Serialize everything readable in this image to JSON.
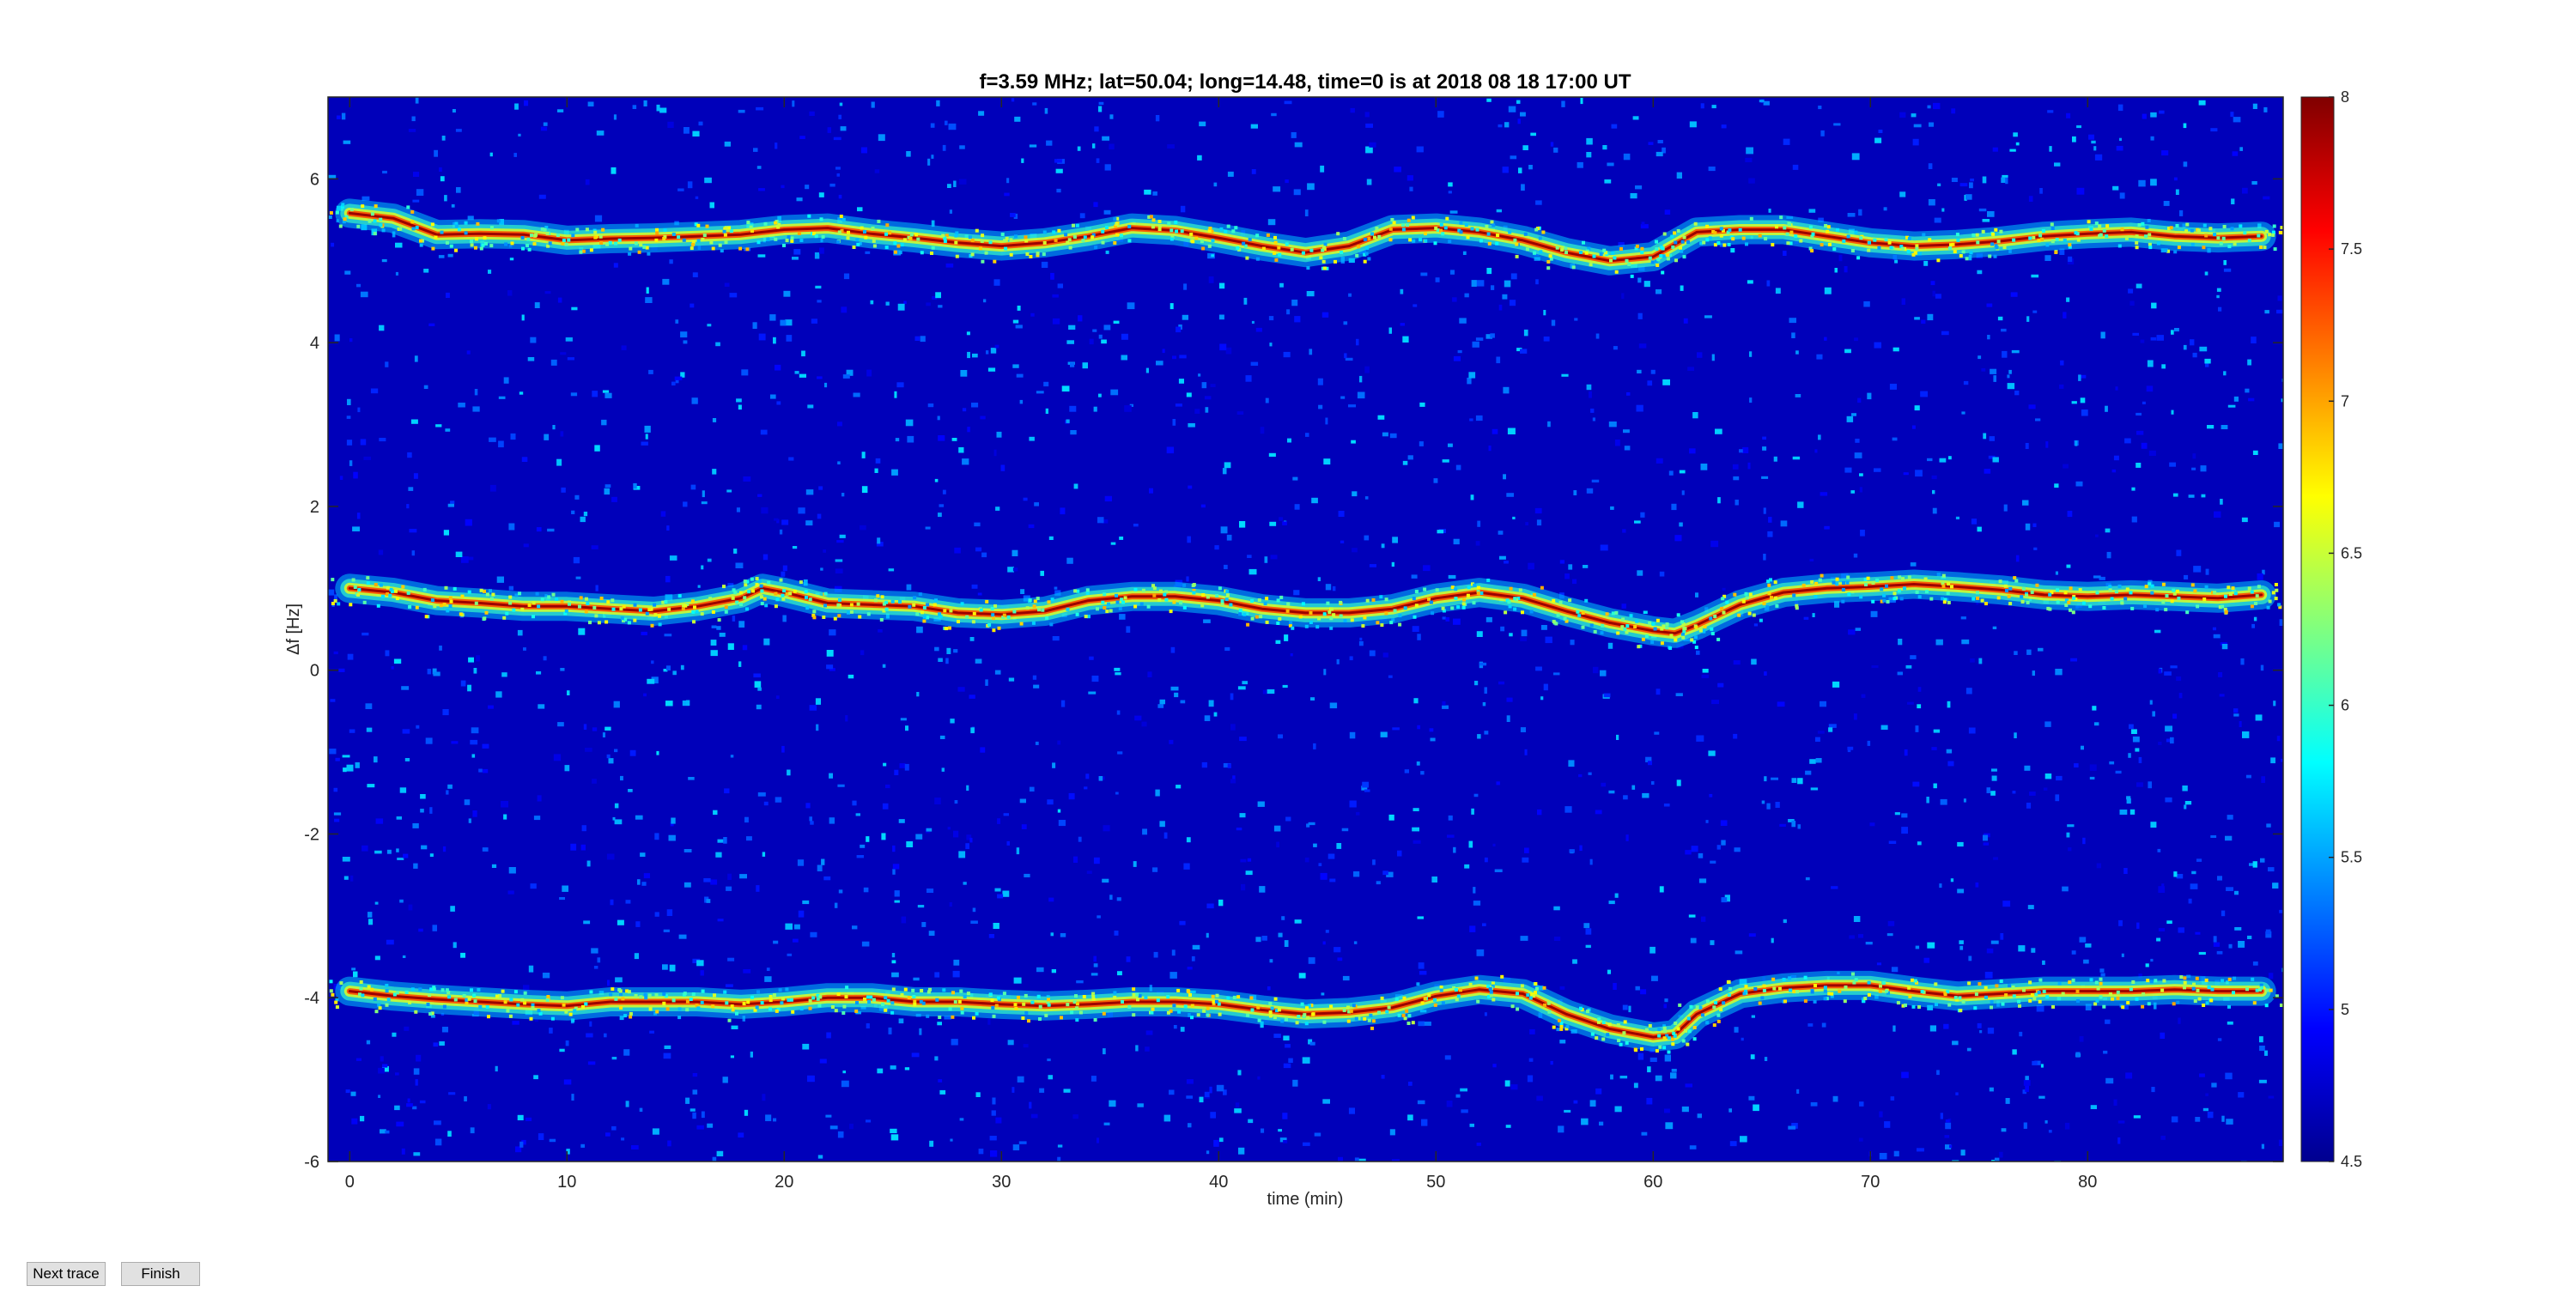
{
  "chart_data": {
    "type": "heatmap",
    "title": "f=3.59 MHz;  lat=50.04; long=14.48, time=0 is at 2018 08 18 17:00 UT",
    "xlabel": "time (min)",
    "ylabel": "Δf [Hz]",
    "xlim": [
      -1,
      89
    ],
    "ylim": [
      -6,
      7
    ],
    "xticks": [
      0,
      10,
      20,
      30,
      40,
      50,
      60,
      70,
      80
    ],
    "yticks": [
      -6,
      -4,
      -2,
      0,
      2,
      4,
      6
    ],
    "colormap": "jet",
    "clim": [
      4.5,
      8
    ],
    "colorbar_ticks": [
      4.5,
      5,
      5.5,
      6,
      6.5,
      7,
      7.5,
      8
    ],
    "background_level": 4.7,
    "series": [
      {
        "points": [
          [
            0,
            5.58
          ],
          [
            2,
            5.52
          ],
          [
            4,
            5.32
          ],
          [
            6,
            5.33
          ],
          [
            8,
            5.32
          ],
          [
            10,
            5.25
          ],
          [
            12,
            5.27
          ],
          [
            14,
            5.28
          ],
          [
            16,
            5.3
          ],
          [
            18,
            5.32
          ],
          [
            20,
            5.38
          ],
          [
            22,
            5.4
          ],
          [
            24,
            5.33
          ],
          [
            26,
            5.28
          ],
          [
            28,
            5.22
          ],
          [
            30,
            5.18
          ],
          [
            32,
            5.22
          ],
          [
            34,
            5.3
          ],
          [
            36,
            5.4
          ],
          [
            38,
            5.37
          ],
          [
            40,
            5.28
          ],
          [
            42,
            5.18
          ],
          [
            44,
            5.1
          ],
          [
            46,
            5.18
          ],
          [
            48,
            5.38
          ],
          [
            50,
            5.4
          ],
          [
            52,
            5.35
          ],
          [
            54,
            5.25
          ],
          [
            56,
            5.1
          ],
          [
            58,
            5.0
          ],
          [
            60,
            5.05
          ],
          [
            61,
            5.2
          ],
          [
            62,
            5.35
          ],
          [
            64,
            5.38
          ],
          [
            66,
            5.38
          ],
          [
            68,
            5.3
          ],
          [
            70,
            5.22
          ],
          [
            72,
            5.18
          ],
          [
            74,
            5.2
          ],
          [
            76,
            5.24
          ],
          [
            78,
            5.3
          ],
          [
            80,
            5.33
          ],
          [
            82,
            5.35
          ],
          [
            84,
            5.3
          ],
          [
            86,
            5.28
          ],
          [
            88,
            5.3
          ]
        ]
      },
      {
        "points": [
          [
            0,
            1.0
          ],
          [
            2,
            0.95
          ],
          [
            4,
            0.85
          ],
          [
            6,
            0.82
          ],
          [
            8,
            0.78
          ],
          [
            10,
            0.78
          ],
          [
            12,
            0.75
          ],
          [
            14,
            0.72
          ],
          [
            16,
            0.78
          ],
          [
            18,
            0.88
          ],
          [
            19,
            1.0
          ],
          [
            20,
            0.95
          ],
          [
            22,
            0.82
          ],
          [
            24,
            0.8
          ],
          [
            26,
            0.78
          ],
          [
            28,
            0.7
          ],
          [
            30,
            0.68
          ],
          [
            32,
            0.72
          ],
          [
            34,
            0.85
          ],
          [
            36,
            0.9
          ],
          [
            38,
            0.9
          ],
          [
            40,
            0.85
          ],
          [
            42,
            0.75
          ],
          [
            44,
            0.7
          ],
          [
            46,
            0.7
          ],
          [
            48,
            0.75
          ],
          [
            50,
            0.88
          ],
          [
            52,
            0.95
          ],
          [
            54,
            0.88
          ],
          [
            56,
            0.72
          ],
          [
            58,
            0.58
          ],
          [
            60,
            0.48
          ],
          [
            61,
            0.45
          ],
          [
            62,
            0.55
          ],
          [
            64,
            0.8
          ],
          [
            66,
            0.95
          ],
          [
            68,
            1.0
          ],
          [
            70,
            1.02
          ],
          [
            72,
            1.05
          ],
          [
            74,
            1.02
          ],
          [
            76,
            0.98
          ],
          [
            78,
            0.92
          ],
          [
            80,
            0.9
          ],
          [
            82,
            0.92
          ],
          [
            84,
            0.9
          ],
          [
            86,
            0.88
          ],
          [
            88,
            0.92
          ]
        ]
      },
      {
        "points": [
          [
            0,
            -3.92
          ],
          [
            2,
            -3.98
          ],
          [
            4,
            -4.02
          ],
          [
            6,
            -4.05
          ],
          [
            8,
            -4.08
          ],
          [
            10,
            -4.1
          ],
          [
            12,
            -4.05
          ],
          [
            14,
            -4.05
          ],
          [
            16,
            -4.05
          ],
          [
            18,
            -4.08
          ],
          [
            20,
            -4.05
          ],
          [
            22,
            -4.0
          ],
          [
            24,
            -4.0
          ],
          [
            26,
            -4.05
          ],
          [
            28,
            -4.05
          ],
          [
            30,
            -4.08
          ],
          [
            32,
            -4.1
          ],
          [
            34,
            -4.08
          ],
          [
            36,
            -4.05
          ],
          [
            38,
            -4.05
          ],
          [
            40,
            -4.08
          ],
          [
            42,
            -4.15
          ],
          [
            44,
            -4.2
          ],
          [
            46,
            -4.18
          ],
          [
            48,
            -4.12
          ],
          [
            50,
            -3.98
          ],
          [
            52,
            -3.9
          ],
          [
            54,
            -3.95
          ],
          [
            56,
            -4.2
          ],
          [
            58,
            -4.38
          ],
          [
            60,
            -4.48
          ],
          [
            61,
            -4.45
          ],
          [
            62,
            -4.2
          ],
          [
            64,
            -3.95
          ],
          [
            66,
            -3.88
          ],
          [
            68,
            -3.85
          ],
          [
            70,
            -3.85
          ],
          [
            72,
            -3.92
          ],
          [
            74,
            -3.98
          ],
          [
            76,
            -3.95
          ],
          [
            78,
            -3.92
          ],
          [
            80,
            -3.92
          ],
          [
            82,
            -3.92
          ],
          [
            84,
            -3.9
          ],
          [
            86,
            -3.92
          ],
          [
            88,
            -3.92
          ]
        ]
      }
    ]
  },
  "buttons": {
    "next_label": "Next trace",
    "finish_label": "Finish"
  }
}
